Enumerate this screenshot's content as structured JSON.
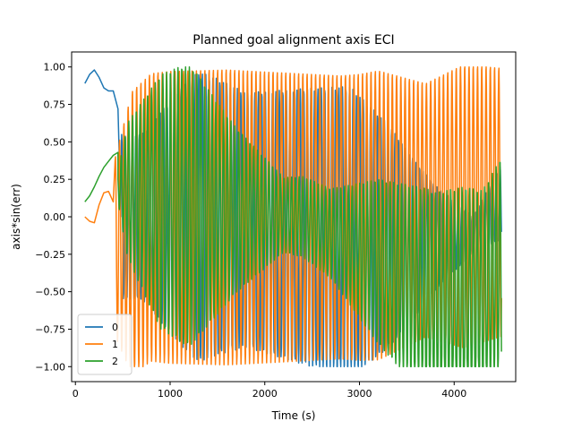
{
  "chart_data": {
    "type": "line",
    "title": "Planned goal alignment axis ECI",
    "xlabel": "Time (s)",
    "ylabel": "axis*sin(err)",
    "xlim": [
      -40,
      4650
    ],
    "ylim": [
      -1.1,
      1.1
    ],
    "xticks": [
      0,
      1000,
      2000,
      3000,
      4000
    ],
    "yticks": [
      -1.0,
      -0.75,
      -0.5,
      -0.25,
      0.0,
      0.25,
      0.5,
      0.75,
      1.0
    ],
    "xtick_labels": [
      "0",
      "1000",
      "2000",
      "3000",
      "4000"
    ],
    "ytick_labels": [
      "−1.00",
      "−0.75",
      "−0.50",
      "−0.25",
      "0.00",
      "0.25",
      "0.50",
      "0.75",
      "1.00"
    ],
    "grid": false,
    "legend_position": "lower-left",
    "series": [
      {
        "name": "0",
        "color": "#1f77b4",
        "x": [
          100,
          150,
          200,
          250,
          300,
          350,
          400,
          450,
          500,
          550,
          600,
          700,
          800,
          1000,
          1200,
          1400,
          1600,
          1800,
          2000,
          2200,
          2400,
          2600,
          2800,
          3000,
          3200,
          3400,
          3600,
          3800,
          4000,
          4200,
          4400,
          4500
        ],
        "values": [
          0.89,
          0.95,
          0.98,
          0.93,
          0.86,
          0.84,
          0.84,
          0.72,
          0.3,
          0.05,
          -0.1,
          0.4,
          -0.2,
          -0.5,
          0.8,
          -0.9,
          0.5,
          -0.7,
          0.4,
          -0.8,
          0.75,
          -0.95,
          0.6,
          -0.55,
          0.35,
          -0.7,
          0.5,
          -0.4,
          0.1,
          -0.2,
          0.3,
          0.22
        ],
        "env_start": 480,
        "env_amp": [
          [
            480,
            0.55
          ],
          [
            700,
            0.55
          ],
          [
            1100,
            0.85
          ],
          [
            1300,
            0.97
          ],
          [
            1800,
            0.85
          ],
          [
            2400,
            0.92
          ],
          [
            2900,
            0.97
          ],
          [
            3300,
            0.75
          ],
          [
            3800,
            0.35
          ],
          [
            4200,
            0.12
          ],
          [
            4500,
            0.25
          ]
        ],
        "env_center": [
          [
            480,
            0.0
          ],
          [
            1500,
            0.0
          ],
          [
            3600,
            -0.15
          ],
          [
            4200,
            -0.12
          ],
          [
            4500,
            0.1
          ]
        ],
        "period": 37
      },
      {
        "name": "1",
        "color": "#ff7f0e",
        "x": [
          100,
          150,
          200,
          250,
          300,
          350,
          400,
          450,
          500
        ],
        "values": [
          0.0,
          -0.03,
          -0.04,
          0.08,
          0.16,
          0.17,
          0.1,
          -0.6,
          -0.45
        ],
        "env_start": 420,
        "env_amp": [
          [
            420,
            0.6
          ],
          [
            600,
            0.95
          ],
          [
            1000,
            0.98
          ],
          [
            1600,
            0.99
          ],
          [
            2200,
            0.97
          ],
          [
            2800,
            0.95
          ],
          [
            3200,
            0.97
          ],
          [
            3700,
            0.85
          ],
          [
            4100,
            0.95
          ],
          [
            4500,
            0.9
          ]
        ],
        "env_center": [
          [
            420,
            -0.2
          ],
          [
            800,
            0.0
          ],
          [
            3000,
            0.0
          ],
          [
            4500,
            0.1
          ]
        ],
        "period": 45
      },
      {
        "name": "2",
        "color": "#2ca02c",
        "x": [
          100,
          150,
          200,
          250,
          300,
          350,
          400,
          450,
          500,
          550
        ],
        "values": [
          0.1,
          0.14,
          0.2,
          0.27,
          0.33,
          0.37,
          0.41,
          0.43,
          0.4,
          0.45
        ],
        "env_start": 450,
        "env_amp": [
          [
            450,
            0.1
          ],
          [
            550,
            0.45
          ],
          [
            900,
            0.85
          ],
          [
            1200,
            0.95
          ],
          [
            1700,
            0.55
          ],
          [
            2200,
            0.25
          ],
          [
            2700,
            0.3
          ],
          [
            3200,
            0.55
          ],
          [
            3700,
            0.7
          ],
          [
            4100,
            0.75
          ],
          [
            4500,
            0.7
          ]
        ],
        "env_center": [
          [
            450,
            0.2
          ],
          [
            900,
            0.1
          ],
          [
            1600,
            0.05
          ],
          [
            2400,
            0.0
          ],
          [
            3200,
            -0.3
          ],
          [
            3800,
            -0.55
          ],
          [
            4300,
            -0.55
          ],
          [
            4500,
            -0.3
          ]
        ],
        "period": 40
      }
    ]
  }
}
